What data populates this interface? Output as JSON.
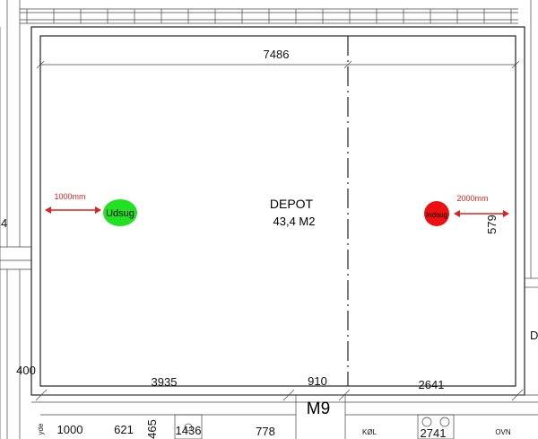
{
  "room": {
    "name": "DEPOT",
    "area": "43,4 M2",
    "code": "M9"
  },
  "dimensions": {
    "top": "7486",
    "right": "579",
    "left": "400",
    "bottom": [
      "3935",
      "910",
      "2641"
    ]
  },
  "vents": [
    {
      "label": "Udsug",
      "distance": "1000mm"
    },
    {
      "label": "Indsug",
      "distance": "2000mm"
    }
  ],
  "lower_row": [
    "1000",
    "621",
    "465",
    "1436",
    "778",
    "2741"
  ],
  "appliances": [
    "KØL",
    "OVN"
  ],
  "edge_labels": {
    "left": "4",
    "right": "D",
    "bottom_left": "yde"
  }
}
